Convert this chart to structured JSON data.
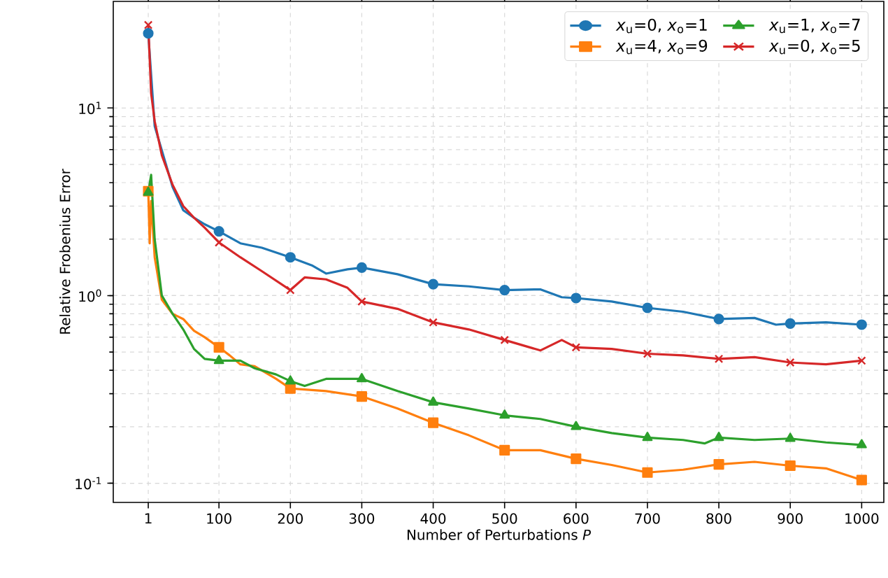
{
  "chart_data": {
    "type": "line",
    "xlabel": "Number of Perturbations *P*",
    "ylabel": "Relative Frobenius Error",
    "xlim": [
      -48,
      1031
    ],
    "ylim": [
      0.079,
      37
    ],
    "log": "y",
    "grid": true,
    "legend": "top right",
    "line_style": "solid",
    "xticks": [
      1,
      100,
      200,
      300,
      400,
      500,
      600,
      700,
      800,
      900,
      1000
    ],
    "yticks": [
      {
        "value": 0.1,
        "label": "10$^{-1}$"
      },
      {
        "value": 1,
        "label": "10$^{0}$"
      },
      {
        "value": 10,
        "label": "10$^{1}$"
      }
    ],
    "series": [
      {
        "color": "#1f77b4",
        "x": [
          1,
          10,
          35,
          50,
          65,
          80,
          100,
          130,
          160,
          200,
          230,
          250,
          280,
          300,
          350,
          400,
          450,
          500,
          550,
          580,
          600,
          650,
          700,
          750,
          800,
          850,
          880,
          900,
          950,
          1000
        ],
        "values": [
          25,
          8,
          3.8,
          2.85,
          2.6,
          2.4,
          2.2,
          1.9,
          1.8,
          1.6,
          1.45,
          1.31,
          1.38,
          1.41,
          1.3,
          1.15,
          1.12,
          1.07,
          1.08,
          0.98,
          0.97,
          0.93,
          0.86,
          0.82,
          0.75,
          0.76,
          0.7,
          0.71,
          0.72,
          0.7
        ]
      },
      {
        "color": "#ff7f0e",
        "x": [
          1,
          3,
          5,
          10,
          20,
          35,
          50,
          65,
          80,
          100,
          115,
          130,
          150,
          180,
          200,
          250,
          300,
          350,
          400,
          450,
          500,
          550,
          600,
          650,
          700,
          750,
          800,
          850,
          900,
          950,
          1000
        ],
        "values": [
          3.6,
          1.9,
          3.2,
          1.6,
          0.95,
          0.8,
          0.75,
          0.65,
          0.6,
          0.53,
          0.48,
          0.43,
          0.42,
          0.36,
          0.32,
          0.31,
          0.29,
          0.25,
          0.21,
          0.18,
          0.15,
          0.15,
          0.135,
          0.125,
          0.114,
          0.118,
          0.126,
          0.13,
          0.124,
          0.12,
          0.104
        ]
      },
      {
        "color": "#2ca02c",
        "x": [
          1,
          5,
          10,
          20,
          35,
          50,
          65,
          80,
          100,
          130,
          150,
          180,
          200,
          220,
          250,
          300,
          350,
          400,
          450,
          500,
          550,
          600,
          650,
          700,
          750,
          780,
          800,
          850,
          900,
          950,
          1000
        ],
        "values": [
          3.55,
          4.4,
          2.0,
          1.0,
          0.8,
          0.66,
          0.52,
          0.46,
          0.45,
          0.45,
          0.41,
          0.38,
          0.35,
          0.33,
          0.36,
          0.36,
          0.31,
          0.27,
          0.25,
          0.23,
          0.22,
          0.2,
          0.185,
          0.175,
          0.17,
          0.163,
          0.175,
          0.17,
          0.173,
          0.165,
          0.16
        ]
      },
      {
        "color": "#d62728",
        "x": [
          1,
          5,
          10,
          20,
          35,
          50,
          65,
          80,
          100,
          130,
          160,
          200,
          220,
          250,
          280,
          300,
          350,
          400,
          450,
          500,
          550,
          580,
          600,
          650,
          700,
          750,
          800,
          850,
          900,
          950,
          1000
        ],
        "values": [
          27.7,
          12,
          8.5,
          5.6,
          3.9,
          3.0,
          2.6,
          2.3,
          1.92,
          1.6,
          1.35,
          1.07,
          1.25,
          1.22,
          1.1,
          0.93,
          0.85,
          0.72,
          0.66,
          0.58,
          0.51,
          0.58,
          0.53,
          0.52,
          0.49,
          0.48,
          0.46,
          0.47,
          0.44,
          0.43,
          0.45
        ]
      },
      {
        "type": "scatter",
        "name": "*x*$_{u}$=0, *x*$_{o}$=1",
        "color": "#1f77b4",
        "marker": "circle",
        "x": [
          1,
          100,
          200,
          300,
          400,
          500,
          600,
          700,
          800,
          900,
          1000
        ],
        "values": [
          25,
          2.2,
          1.6,
          1.41,
          1.15,
          1.07,
          0.97,
          0.86,
          0.75,
          0.71,
          0.7
        ]
      },
      {
        "type": "scatter",
        "name": "*x*$_{u}$=4, *x*$_{o}$=9",
        "color": "#ff7f0e",
        "marker": "square",
        "x": [
          1,
          100,
          200,
          300,
          400,
          500,
          600,
          700,
          800,
          900,
          1000
        ],
        "values": [
          3.6,
          0.53,
          0.32,
          0.29,
          0.21,
          0.15,
          0.135,
          0.114,
          0.126,
          0.124,
          0.104
        ]
      },
      {
        "type": "scatter",
        "name": "*x*$_{u}$=1, *x*$_{o}$=7",
        "color": "#2ca02c",
        "marker": "triangle",
        "x": [
          1,
          100,
          200,
          300,
          400,
          500,
          600,
          700,
          800,
          900,
          1000
        ],
        "values": [
          3.55,
          0.45,
          0.35,
          0.36,
          0.27,
          0.23,
          0.2,
          0.175,
          0.175,
          0.173,
          0.16
        ]
      },
      {
        "type": "scatter",
        "name": "*x*$_{u}$=0, *x*$_{o}$=5",
        "color": "#d62728",
        "marker": "cross",
        "x": [
          1,
          100,
          200,
          300,
          400,
          500,
          600,
          700,
          800,
          900,
          1000
        ],
        "values": [
          27.7,
          1.92,
          1.07,
          0.93,
          0.72,
          0.58,
          0.53,
          0.49,
          0.46,
          0.44,
          0.45
        ]
      }
    ]
  }
}
